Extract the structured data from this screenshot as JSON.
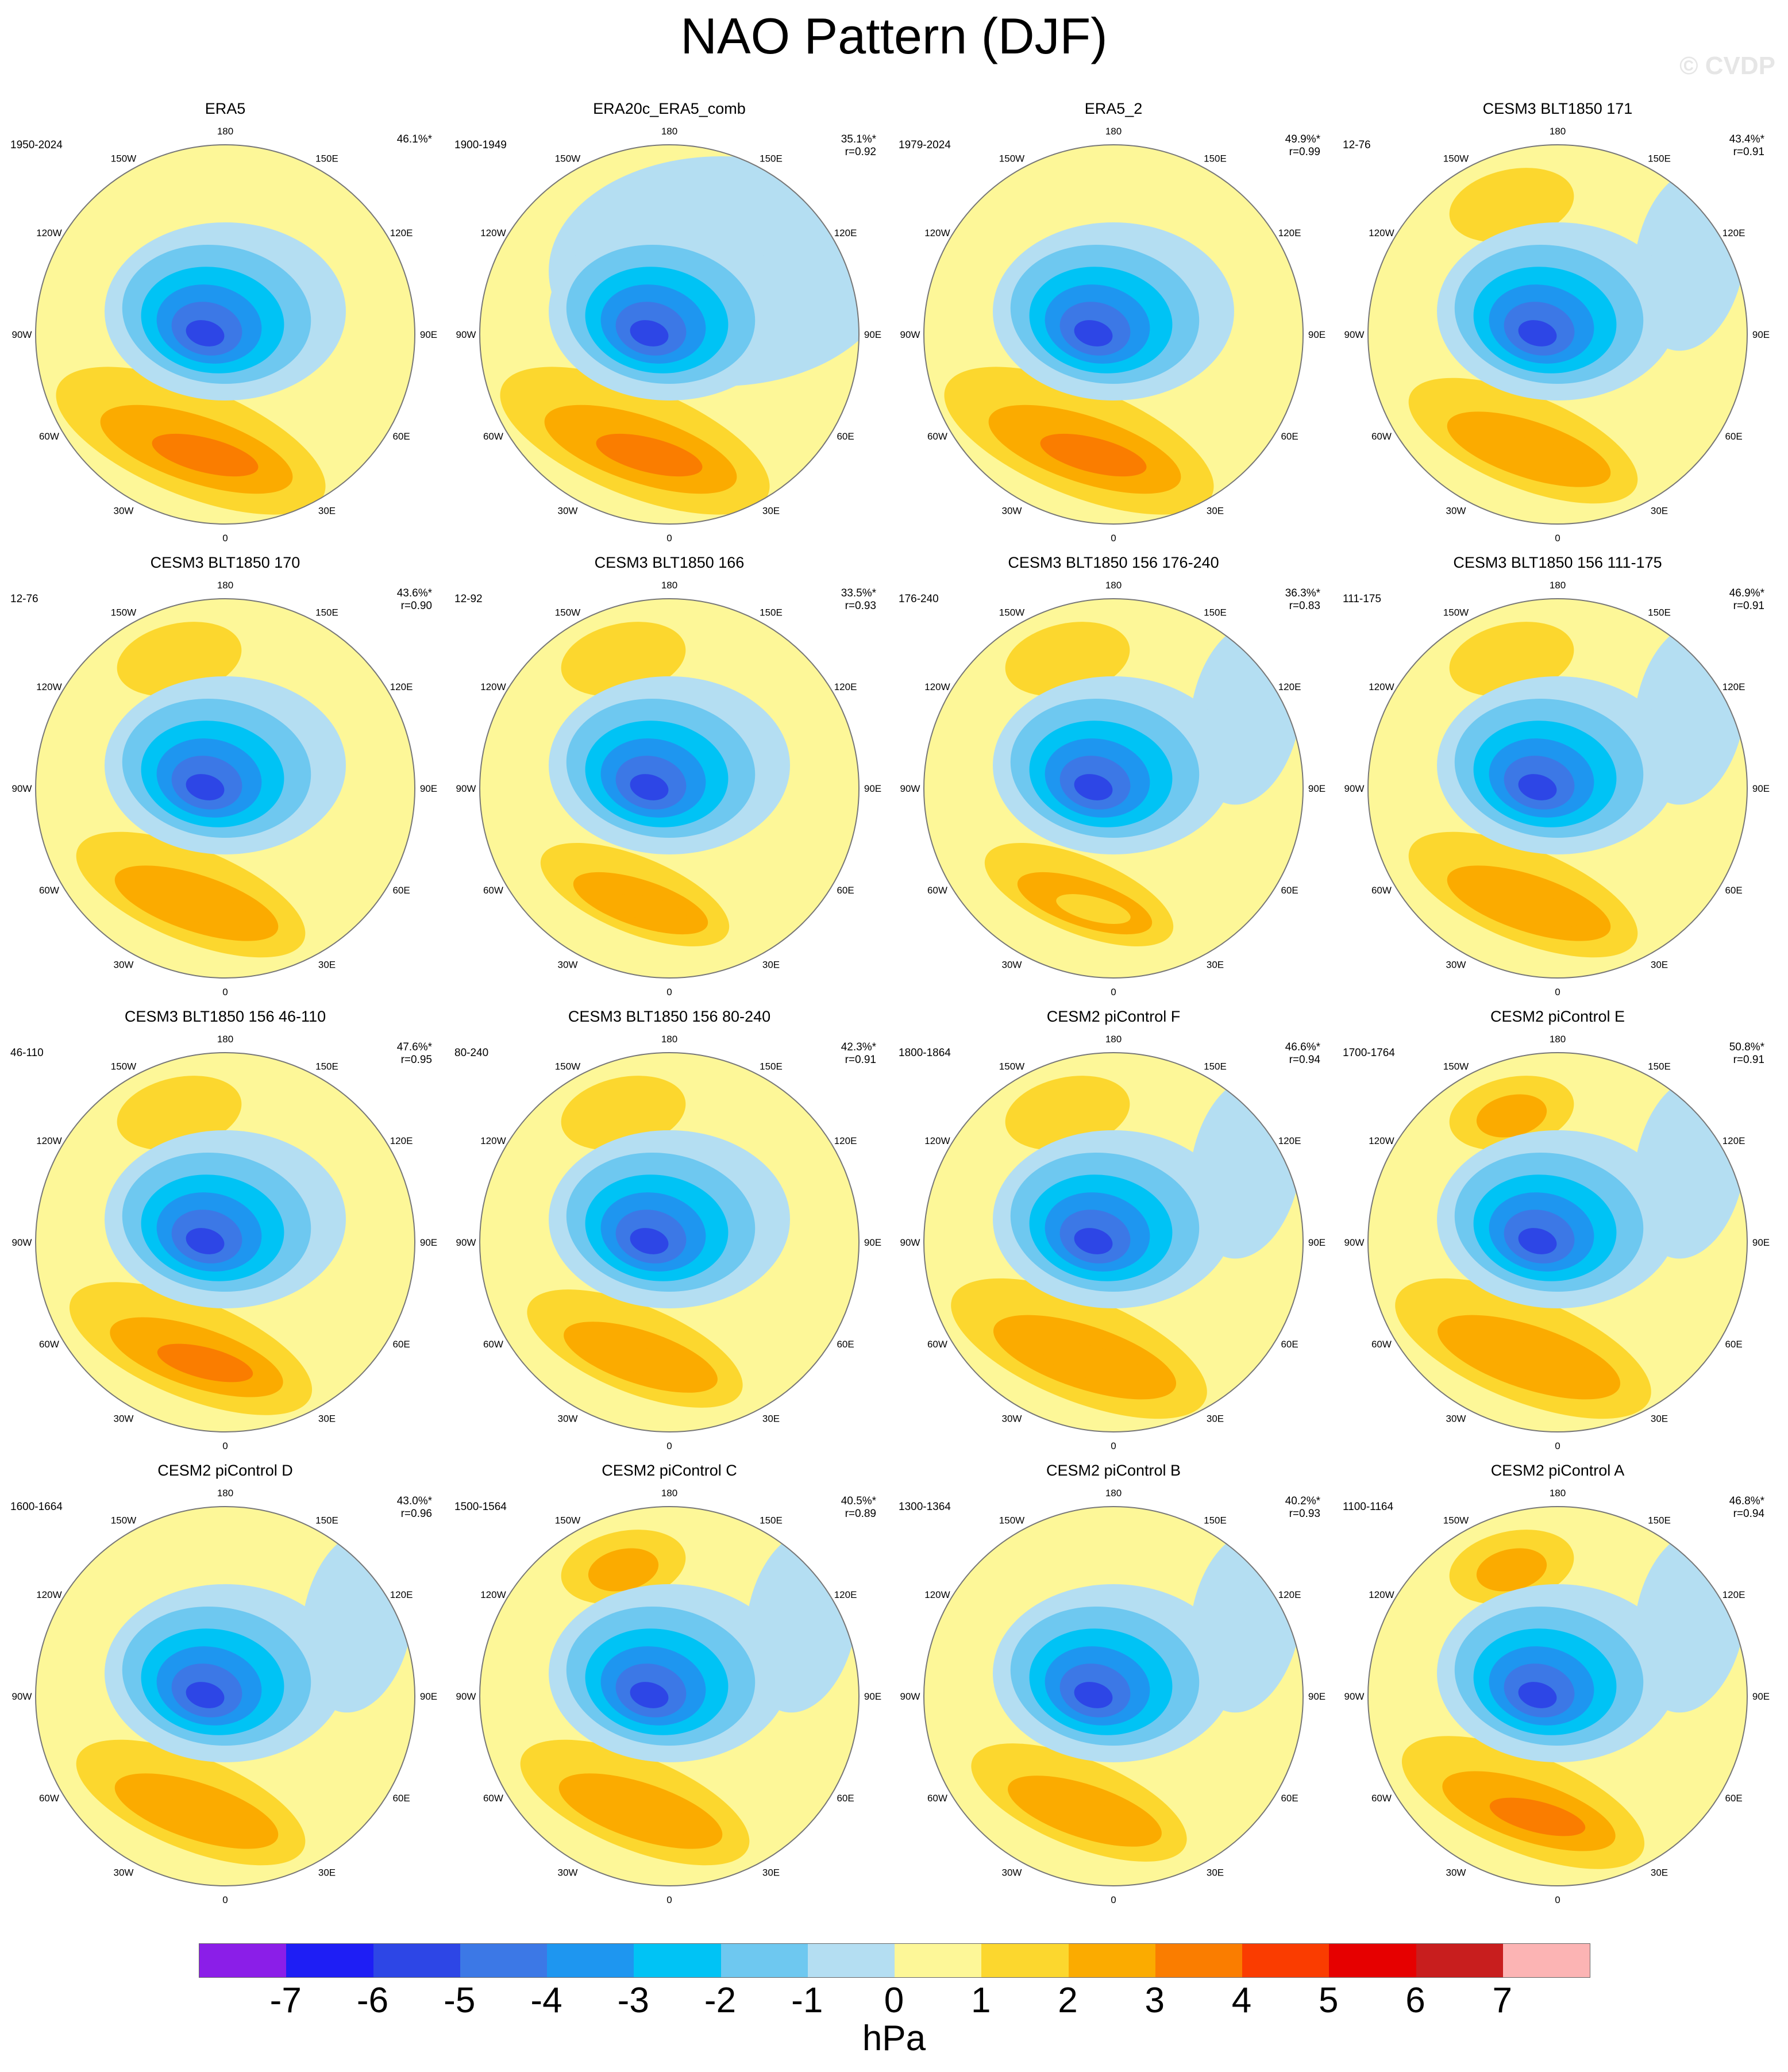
{
  "title": "NAO Pattern (DJF)",
  "copyright": "© CVDP",
  "longitude_labels": [
    "180",
    "150E",
    "120E",
    "90E",
    "60E",
    "30E",
    "0",
    "30W",
    "60W",
    "90W",
    "120W",
    "150W"
  ],
  "panels": [
    {
      "title": "ERA5",
      "period": "1950-2024",
      "pct": "46.1%*",
      "r": ""
    },
    {
      "title": "ERA20c_ERA5_comb",
      "period": "1900-1949",
      "pct": "35.1%*",
      "r": "r=0.92"
    },
    {
      "title": "ERA5_2",
      "period": "1979-2024",
      "pct": "49.9%*",
      "r": "r=0.99"
    },
    {
      "title": "CESM3 BLT1850 171",
      "period": "12-76",
      "pct": "43.4%*",
      "r": "r=0.91"
    },
    {
      "title": "CESM3 BLT1850 170",
      "period": "12-76",
      "pct": "43.6%*",
      "r": "r=0.90"
    },
    {
      "title": "CESM3 BLT1850 166",
      "period": "12-92",
      "pct": "33.5%*",
      "r": "r=0.93"
    },
    {
      "title": "CESM3 BLT1850 156 176-240",
      "period": "176-240",
      "pct": "36.3%*",
      "r": "r=0.83"
    },
    {
      "title": "CESM3 BLT1850 156 111-175",
      "period": "111-175",
      "pct": "46.9%*",
      "r": "r=0.91"
    },
    {
      "title": "CESM3 BLT1850 156 46-110",
      "period": "46-110",
      "pct": "47.6%*",
      "r": "r=0.95"
    },
    {
      "title": "CESM3 BLT1850 156 80-240",
      "period": "80-240",
      "pct": "42.3%*",
      "r": "r=0.91"
    },
    {
      "title": "CESM2 piControl F",
      "period": "1800-1864",
      "pct": "46.6%*",
      "r": "r=0.94"
    },
    {
      "title": "CESM2 piControl E",
      "period": "1700-1764",
      "pct": "50.8%*",
      "r": "r=0.91"
    },
    {
      "title": "CESM2 piControl D",
      "period": "1600-1664",
      "pct": "43.0%*",
      "r": "r=0.96"
    },
    {
      "title": "CESM2 piControl C",
      "period": "1500-1564",
      "pct": "40.5%*",
      "r": "r=0.89"
    },
    {
      "title": "CESM2 piControl B",
      "period": "1300-1364",
      "pct": "40.2%*",
      "r": "r=0.93"
    },
    {
      "title": "CESM2 piControl A",
      "period": "1100-1164",
      "pct": "46.8%*",
      "r": "r=0.94"
    }
  ],
  "colorbar": {
    "colors": [
      "#8b1ee8",
      "#1e1ef5",
      "#2d46e6",
      "#3c78e6",
      "#1e96f0",
      "#00c3f5",
      "#6ec8f0",
      "#b4def2",
      "#fdf798",
      "#fcd72e",
      "#fbab00",
      "#fa7d00",
      "#fa3c00",
      "#e60000",
      "#c81e1e",
      "#fcb4b4"
    ],
    "ticks": [
      "-7",
      "-6",
      "-5",
      "-4",
      "-3",
      "-2",
      "-1",
      "0",
      "1",
      "2",
      "3",
      "4",
      "5",
      "6",
      "7"
    ],
    "units": "hPa"
  }
}
